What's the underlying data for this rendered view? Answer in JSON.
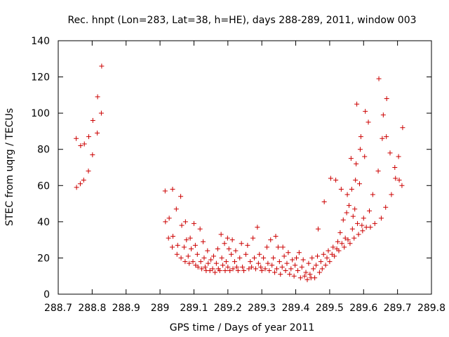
{
  "chart_data": {
    "type": "scatter",
    "title": "Rec. hnpt (Lon=283, Lat=38, h=HE), days 288-289, 2011, window 003",
    "xlabel": "GPS time / Days of year 2011",
    "ylabel": "STEC from uqrg / TECUs",
    "xlim": [
      288.7,
      289.8
    ],
    "ylim": [
      0,
      140
    ],
    "xticks": [
      288.7,
      288.8,
      288.9,
      289.0,
      289.1,
      289.2,
      289.3,
      289.4,
      289.5,
      289.6,
      289.7,
      289.8
    ],
    "xtick_labels": [
      "288.7",
      "288.8",
      "288.9",
      "289",
      "289.1",
      "289.2",
      "289.3",
      "289.4",
      "289.5",
      "289.6",
      "289.7",
      "289.8"
    ],
    "yticks": [
      0,
      20,
      40,
      60,
      80,
      100,
      120,
      140
    ],
    "ytick_labels": [
      "0",
      "20",
      "40",
      "60",
      "80",
      "100",
      "120",
      "140"
    ],
    "grid": false,
    "marker": "plus",
    "color": "#cc0000",
    "series": [
      {
        "points": [
          [
            288.753,
            86
          ],
          [
            288.754,
            59
          ],
          [
            288.765,
            61
          ],
          [
            288.766,
            82
          ],
          [
            288.775,
            63
          ],
          [
            288.777,
            83
          ],
          [
            288.789,
            68
          ],
          [
            288.79,
            87
          ],
          [
            288.801,
            77
          ],
          [
            288.802,
            96
          ],
          [
            288.815,
            89
          ],
          [
            288.816,
            109
          ],
          [
            288.827,
            100
          ],
          [
            288.828,
            126
          ],
          [
            289.015,
            57
          ],
          [
            289.016,
            40
          ],
          [
            289.025,
            31
          ],
          [
            289.027,
            42
          ],
          [
            289.036,
            26
          ],
          [
            289.037,
            58
          ],
          [
            289.038,
            32
          ],
          [
            289.048,
            47
          ],
          [
            289.05,
            22
          ],
          [
            289.052,
            27
          ],
          [
            289.061,
            54
          ],
          [
            289.062,
            20
          ],
          [
            289.064,
            38
          ],
          [
            289.071,
            26
          ],
          [
            289.074,
            18
          ],
          [
            289.075,
            40
          ],
          [
            289.078,
            30
          ],
          [
            289.083,
            21
          ],
          [
            289.086,
            17
          ],
          [
            289.089,
            31
          ],
          [
            289.092,
            25
          ],
          [
            289.097,
            18
          ],
          [
            289.1,
            39
          ],
          [
            289.104,
            27
          ],
          [
            289.105,
            16
          ],
          [
            289.11,
            22
          ],
          [
            289.112,
            15
          ],
          [
            289.118,
            36
          ],
          [
            289.12,
            18
          ],
          [
            289.123,
            14
          ],
          [
            289.127,
            29
          ],
          [
            289.13,
            20
          ],
          [
            289.133,
            15
          ],
          [
            289.136,
            13
          ],
          [
            289.14,
            24
          ],
          [
            289.142,
            17
          ],
          [
            289.147,
            13
          ],
          [
            289.15,
            19
          ],
          [
            289.155,
            14
          ],
          [
            289.158,
            21
          ],
          [
            289.162,
            12
          ],
          [
            289.166,
            17
          ],
          [
            289.17,
            25
          ],
          [
            289.172,
            14
          ],
          [
            289.176,
            13
          ],
          [
            289.18,
            33
          ],
          [
            289.182,
            20
          ],
          [
            289.185,
            16
          ],
          [
            289.19,
            28
          ],
          [
            289.192,
            13
          ],
          [
            289.195,
            18
          ],
          [
            289.199,
            31
          ],
          [
            289.2,
            15
          ],
          [
            289.203,
            25
          ],
          [
            289.206,
            13
          ],
          [
            289.21,
            22
          ],
          [
            289.213,
            30
          ],
          [
            289.215,
            14
          ],
          [
            289.22,
            18
          ],
          [
            289.223,
            24
          ],
          [
            289.226,
            15
          ],
          [
            289.23,
            13
          ],
          [
            289.235,
            20
          ],
          [
            289.24,
            28
          ],
          [
            289.243,
            15
          ],
          [
            289.247,
            13
          ],
          [
            289.253,
            22
          ],
          [
            289.258,
            27
          ],
          [
            289.262,
            14
          ],
          [
            289.266,
            18
          ],
          [
            289.27,
            15
          ],
          [
            289.274,
            31
          ],
          [
            289.278,
            20
          ],
          [
            289.282,
            14
          ],
          [
            289.287,
            37
          ],
          [
            289.29,
            17
          ],
          [
            289.293,
            22
          ],
          [
            289.297,
            15
          ],
          [
            289.3,
            13
          ],
          [
            289.305,
            20
          ],
          [
            289.31,
            14
          ],
          [
            289.315,
            26
          ],
          [
            289.318,
            17
          ],
          [
            289.322,
            13
          ],
          [
            289.326,
            30
          ],
          [
            289.33,
            16
          ],
          [
            289.334,
            20
          ],
          [
            289.338,
            12
          ],
          [
            289.341,
            32
          ],
          [
            289.344,
            14
          ],
          [
            289.348,
            26
          ],
          [
            289.352,
            18
          ],
          [
            289.355,
            11
          ],
          [
            289.36,
            15
          ],
          [
            289.362,
            26
          ],
          [
            289.366,
            21
          ],
          [
            289.37,
            13
          ],
          [
            289.374,
            17
          ],
          [
            289.378,
            23
          ],
          [
            289.382,
            11
          ],
          [
            289.386,
            14
          ],
          [
            289.39,
            19
          ],
          [
            289.395,
            10
          ],
          [
            289.398,
            16
          ],
          [
            289.402,
            20
          ],
          [
            289.406,
            13
          ],
          [
            289.41,
            23
          ],
          [
            289.414,
            9
          ],
          [
            289.418,
            15
          ],
          [
            289.422,
            19
          ],
          [
            289.426,
            10
          ],
          [
            289.43,
            12
          ],
          [
            289.434,
            8
          ],
          [
            289.438,
            17
          ],
          [
            289.442,
            11
          ],
          [
            289.445,
            9
          ],
          [
            289.448,
            20
          ],
          [
            289.452,
            14
          ],
          [
            289.456,
            9
          ],
          [
            289.46,
            16
          ],
          [
            289.464,
            21
          ],
          [
            289.466,
            36
          ],
          [
            289.47,
            12
          ],
          [
            289.474,
            18
          ],
          [
            289.478,
            14
          ],
          [
            289.482,
            22
          ],
          [
            289.484,
            51
          ],
          [
            289.488,
            16
          ],
          [
            289.492,
            20
          ],
          [
            289.496,
            24
          ],
          [
            289.5,
            18
          ],
          [
            289.503,
            64
          ],
          [
            289.507,
            22
          ],
          [
            289.51,
            26
          ],
          [
            289.514,
            21
          ],
          [
            289.518,
            63
          ],
          [
            289.521,
            25
          ],
          [
            289.524,
            29
          ],
          [
            289.527,
            24
          ],
          [
            289.531,
            34
          ],
          [
            289.534,
            58
          ],
          [
            289.536,
            28
          ],
          [
            289.54,
            41
          ],
          [
            289.543,
            26
          ],
          [
            289.546,
            31
          ],
          [
            289.55,
            45
          ],
          [
            289.552,
            55
          ],
          [
            289.554,
            30
          ],
          [
            289.557,
            49
          ],
          [
            289.56,
            28
          ],
          [
            289.563,
            75
          ],
          [
            289.565,
            58
          ],
          [
            289.567,
            36
          ],
          [
            289.569,
            43
          ],
          [
            289.572,
            31
          ],
          [
            289.574,
            47
          ],
          [
            289.576,
            63
          ],
          [
            289.578,
            72
          ],
          [
            289.58,
            105
          ],
          [
            289.582,
            39
          ],
          [
            289.585,
            33
          ],
          [
            289.588,
            61
          ],
          [
            289.59,
            80
          ],
          [
            289.592,
            87
          ],
          [
            289.595,
            38
          ],
          [
            289.597,
            35
          ],
          [
            289.6,
            42
          ],
          [
            289.603,
            76
          ],
          [
            289.605,
            101
          ],
          [
            289.608,
            37
          ],
          [
            289.614,
            95
          ],
          [
            289.617,
            46
          ],
          [
            289.62,
            37
          ],
          [
            289.627,
            55
          ],
          [
            289.633,
            39
          ],
          [
            289.643,
            68
          ],
          [
            289.645,
            119
          ],
          [
            289.652,
            42
          ],
          [
            289.655,
            86
          ],
          [
            289.658,
            99
          ],
          [
            289.665,
            48
          ],
          [
            289.667,
            87
          ],
          [
            289.668,
            108
          ],
          [
            289.678,
            78
          ],
          [
            289.682,
            55
          ],
          [
            289.692,
            70
          ],
          [
            289.694,
            64
          ],
          [
            289.703,
            76
          ],
          [
            289.705,
            63
          ],
          [
            289.713,
            60
          ],
          [
            289.715,
            92
          ]
        ]
      }
    ]
  }
}
